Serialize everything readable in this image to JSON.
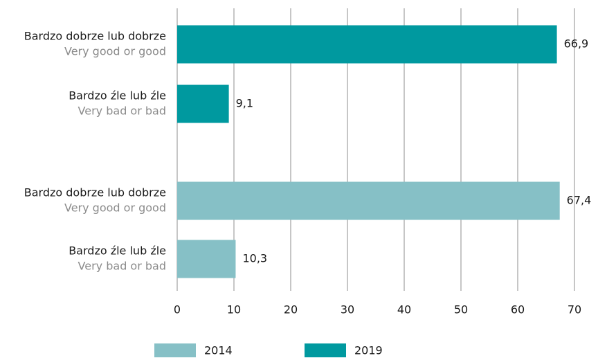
{
  "chart_data": {
    "type": "barh",
    "categories": [
      {
        "label": "Bardzo dobrze lub dobrze",
        "sublabel": "Very good or good"
      },
      {
        "label": "Bardzo źle lub źle",
        "sublabel": "Very bad or bad"
      },
      {
        "label": "Bardzo dobrze lub dobrze",
        "sublabel": "Very good or good"
      },
      {
        "label": "Bardzo źle lub źle",
        "sublabel": "Very bad or bad"
      }
    ],
    "series": [
      {
        "name": "2014",
        "color": "#86c0c6",
        "values": [
          null,
          null,
          67.4,
          10.3
        ],
        "value_labels": [
          null,
          null,
          "67,4",
          "10,3"
        ]
      },
      {
        "name": "2019",
        "color": "#00999f",
        "values": [
          66.9,
          9.1,
          null,
          null
        ],
        "value_labels": [
          "66,9",
          "9,1",
          null,
          null
        ]
      }
    ],
    "xlim": [
      0,
      70
    ],
    "xticks": [
      0,
      10,
      20,
      30,
      40,
      50,
      60,
      70
    ],
    "grid": true
  }
}
